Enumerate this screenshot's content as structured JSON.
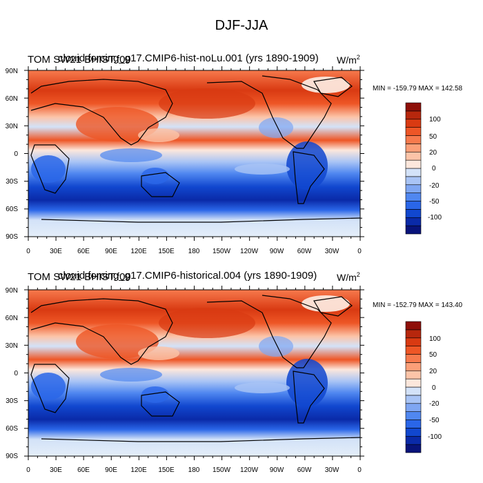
{
  "title": "DJF-JJA",
  "panels": [
    {
      "left_label_a": "TOM SW21 BHIST.f09",
      "left_label_b": "clouid forcing_g17.CMIP6-hist-noLu.001 (yrs 1890-1909)",
      "units": "W/m",
      "units_sup": "2",
      "stats": "MIN = -159.79 MAX = 142.58"
    },
    {
      "left_label_a": "TOM SW21 BHIST.f09",
      "left_label_b": "clouid forcing_g17.CMIP6-historical.004 (yrs 1890-1909)",
      "units": "W/m",
      "units_sup": "2",
      "stats": "MIN = -152.79 MAX = 143.40"
    }
  ],
  "lat_labels": [
    "90N",
    "60N",
    "30N",
    "0",
    "30S",
    "60S",
    "90S"
  ],
  "lon_labels": [
    "0",
    "30E",
    "60E",
    "90E",
    "120E",
    "150E",
    "180",
    "150W",
    "120W",
    "90W",
    "60W",
    "30W",
    "0"
  ],
  "colorbar": {
    "colors": [
      "#08137a",
      "#0a2aa8",
      "#1147cf",
      "#2a66e8",
      "#5087f0",
      "#7fa6f2",
      "#a9c4f5",
      "#d3e2f8",
      "#fce7dc",
      "#fcc4a8",
      "#fb9f78",
      "#f77a4d",
      "#ee5626",
      "#d93a12",
      "#b7270d",
      "#8e0f08"
    ],
    "labels": [
      "-100",
      "-50",
      "-20",
      "0",
      "20",
      "50",
      "100"
    ]
  }
}
